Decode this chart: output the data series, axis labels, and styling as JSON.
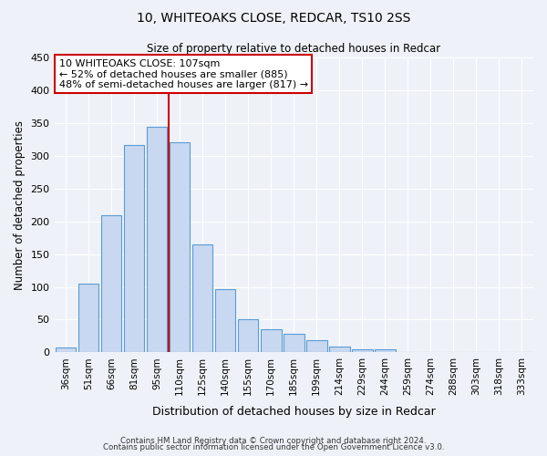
{
  "title1": "10, WHITEOAKS CLOSE, REDCAR, TS10 2SS",
  "title2": "Size of property relative to detached houses in Redcar",
  "xlabel": "Distribution of detached houses by size in Redcar",
  "ylabel": "Number of detached properties",
  "bar_color": "#c8d8f0",
  "bar_edge_color": "#5b9bd5",
  "categories": [
    "36sqm",
    "51sqm",
    "66sqm",
    "81sqm",
    "95sqm",
    "110sqm",
    "125sqm",
    "140sqm",
    "155sqm",
    "170sqm",
    "185sqm",
    "199sqm",
    "214sqm",
    "229sqm",
    "244sqm",
    "259sqm",
    "274sqm",
    "288sqm",
    "303sqm",
    "318sqm",
    "333sqm"
  ],
  "values": [
    7,
    105,
    210,
    317,
    345,
    320,
    165,
    97,
    51,
    36,
    29,
    18,
    9,
    5,
    5,
    1,
    1,
    0,
    0,
    0,
    0
  ],
  "vline_color": "#cc0000",
  "vline_pos": 4.5,
  "annotation_title": "10 WHITEOAKS CLOSE: 107sqm",
  "annotation_line1": "← 52% of detached houses are smaller (885)",
  "annotation_line2": "48% of semi-detached houses are larger (817) →",
  "annotation_box_color": "#ffffff",
  "annotation_box_edge": "#cc0000",
  "ylim": [
    0,
    450
  ],
  "yticks": [
    0,
    50,
    100,
    150,
    200,
    250,
    300,
    350,
    400,
    450
  ],
  "footer1": "Contains HM Land Registry data © Crown copyright and database right 2024.",
  "footer2": "Contains public sector information licensed under the Open Government Licence v3.0.",
  "bg_color": "#eef2f8",
  "grid_color": "#ffffff"
}
